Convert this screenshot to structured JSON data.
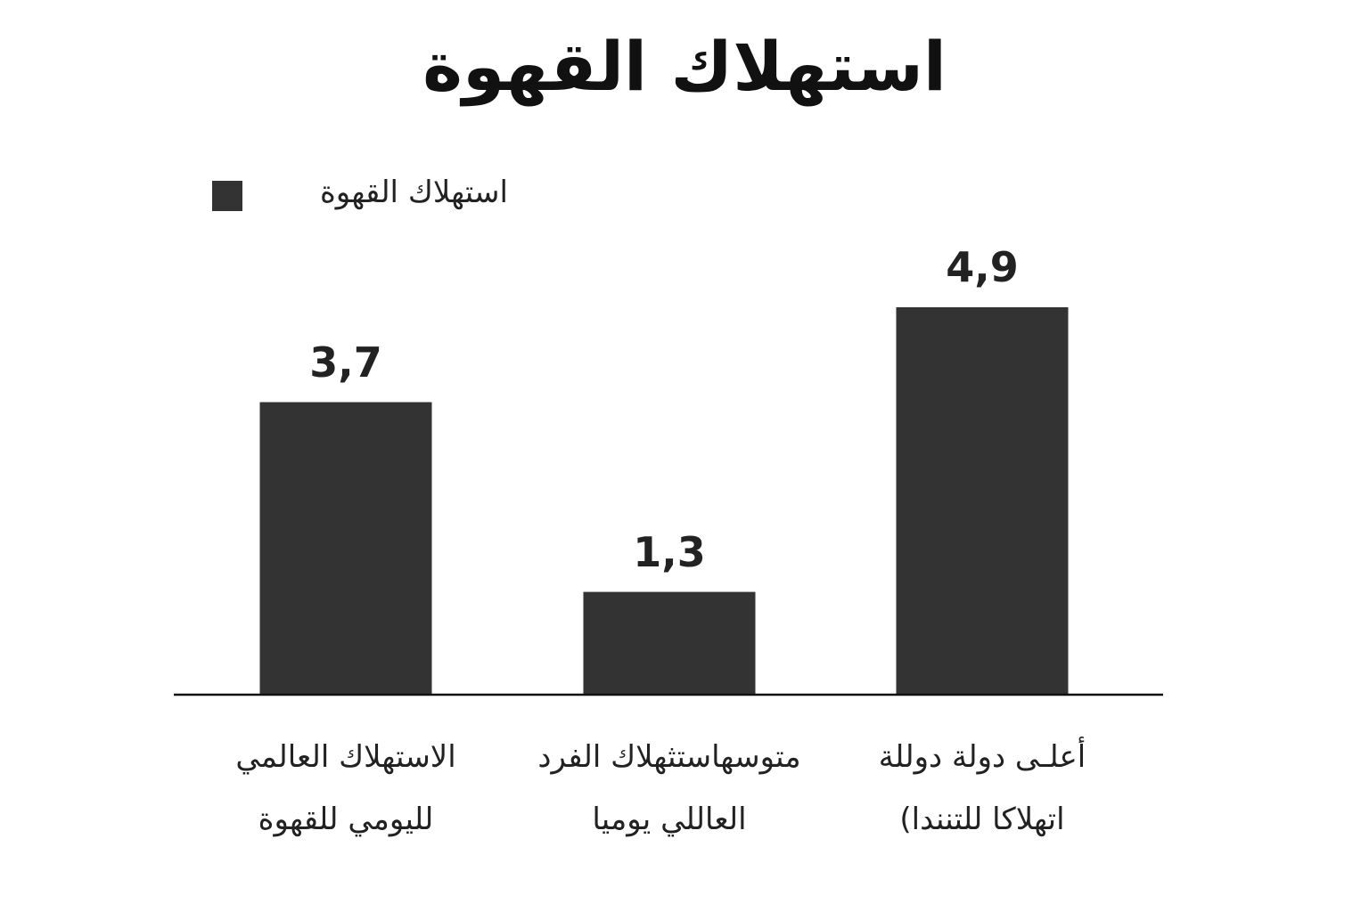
{
  "chart_data": {
    "type": "bar",
    "title": "استهلاك القهوة",
    "categories": [
      "الاستهلاك العالمي\nلليومي للقهوة",
      "متوسهاستثهلاك الفرد\nالعاللي يوميا",
      "أعلـى دولة دوللة\nاتهلاكا للتنندا)"
    ],
    "series": [
      {
        "name": "استهلاك القهوة",
        "color": "#333333",
        "values": [
          3.7,
          1.3,
          4.9
        ],
        "value_labels": [
          "3,7",
          "1,3",
          "4,9"
        ]
      }
    ]
  }
}
